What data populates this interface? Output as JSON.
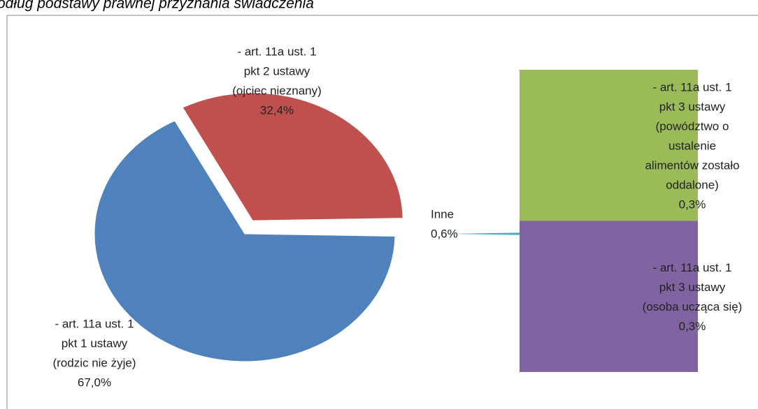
{
  "chart_data": {
    "type": "pie-of-bar",
    "title": "odług podstawy prawnej przyznania świadczenia",
    "categories": [
      [
        "- art. 11a ust. 1",
        "pkt 1 ustawy",
        "(rodzic nie żyje)"
      ],
      [
        "- art. 11a ust. 1",
        "pkt 2 ustawy",
        "(ojciec nieznany)"
      ],
      [
        "Inne"
      ]
    ],
    "values": [
      67.0,
      32.4,
      0.6
    ],
    "value_labels": [
      "67,0%",
      "32,4%",
      "0,6%"
    ],
    "colors": [
      "#4f81bd",
      "#c0504d",
      "#4bacc6"
    ],
    "secondary": {
      "categories": [
        [
          "- art. 11a ust. 1",
          "pkt 3 ustawy",
          "(powództwo o",
          "ustalenie",
          "alimentów zostało",
          "oddalone)"
        ],
        [
          "- art. 11a ust. 1",
          "pkt 3 ustawy",
          "(osoba ucząca się)"
        ]
      ],
      "values": [
        0.3,
        0.3
      ],
      "value_labels": [
        "0,3%",
        "0,3%"
      ],
      "colors": [
        "#9bbb59",
        "#8064a2"
      ]
    }
  }
}
